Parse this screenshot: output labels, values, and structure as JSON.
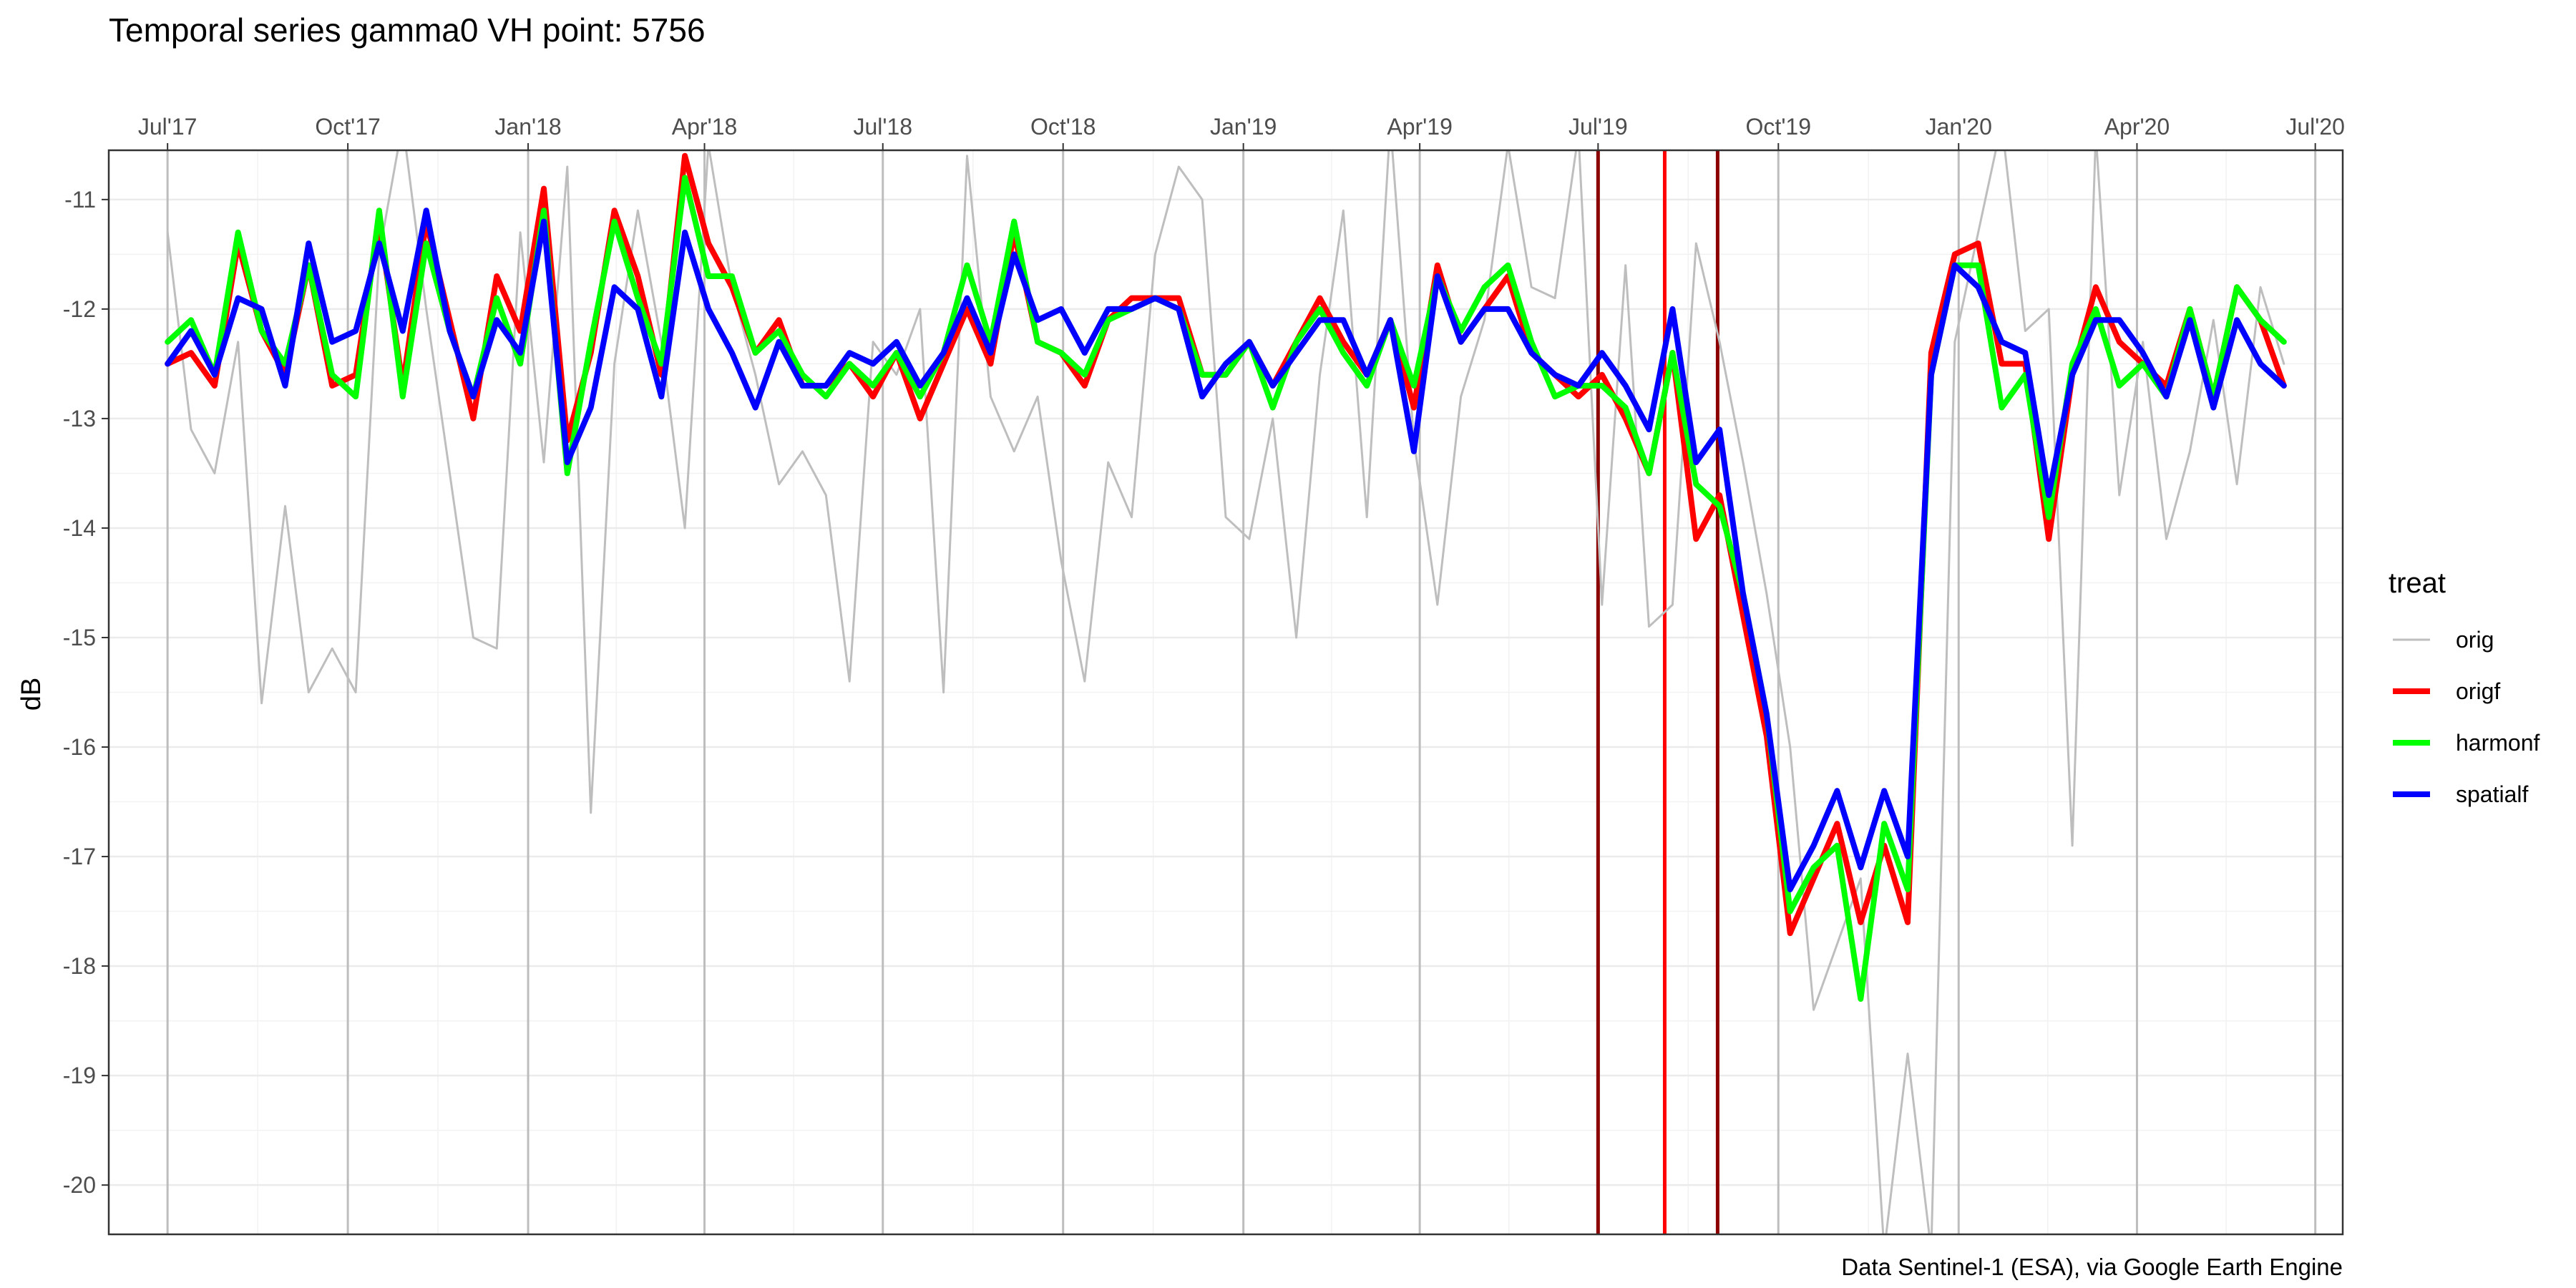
{
  "chart_data": {
    "type": "line",
    "title": "Temporal series gamma0 VH point: 5756",
    "xlabel": "",
    "ylabel": "dB",
    "caption": "Data Sentinel-1 (ESA), via Google Earth Engine",
    "x_axis_position": "top",
    "x_ticks": [
      {
        "date": "2017-07-01",
        "label": "Jul'17"
      },
      {
        "date": "2017-10-01",
        "label": "Oct'17"
      },
      {
        "date": "2018-01-01",
        "label": "Jan'18"
      },
      {
        "date": "2018-04-01",
        "label": "Apr'18"
      },
      {
        "date": "2018-07-01",
        "label": "Jul'18"
      },
      {
        "date": "2018-10-01",
        "label": "Oct'18"
      },
      {
        "date": "2019-01-01",
        "label": "Jan'19"
      },
      {
        "date": "2019-04-01",
        "label": "Apr'19"
      },
      {
        "date": "2019-07-01",
        "label": "Jul'19"
      },
      {
        "date": "2019-10-01",
        "label": "Oct'19"
      },
      {
        "date": "2020-01-01",
        "label": "Jan'20"
      },
      {
        "date": "2020-04-01",
        "label": "Apr'20"
      },
      {
        "date": "2020-07-01",
        "label": "Jul'20"
      }
    ],
    "xlim": [
      "2017-06-01",
      "2020-07-15"
    ],
    "ylim": [
      -20.45,
      -10.55
    ],
    "y_ticks": [
      -20,
      -19,
      -18,
      -17,
      -16,
      -15,
      -14,
      -13,
      -12,
      -11
    ],
    "grid": true,
    "legend": {
      "title": "treat",
      "position": "right"
    },
    "x": [
      "2017-07-01",
      "2017-07-13",
      "2017-07-25",
      "2017-08-06",
      "2017-08-18",
      "2017-08-30",
      "2017-09-11",
      "2017-09-23",
      "2017-10-05",
      "2017-10-17",
      "2017-10-29",
      "2017-11-10",
      "2017-11-22",
      "2017-12-04",
      "2017-12-16",
      "2017-12-28",
      "2018-01-09",
      "2018-01-21",
      "2018-02-02",
      "2018-02-14",
      "2018-02-26",
      "2018-03-10",
      "2018-03-22",
      "2018-04-03",
      "2018-04-15",
      "2018-04-27",
      "2018-05-09",
      "2018-05-21",
      "2018-06-02",
      "2018-06-14",
      "2018-06-26",
      "2018-07-08",
      "2018-07-20",
      "2018-08-01",
      "2018-08-13",
      "2018-08-25",
      "2018-09-06",
      "2018-09-18",
      "2018-09-30",
      "2018-10-12",
      "2018-10-24",
      "2018-11-05",
      "2018-11-17",
      "2018-11-29",
      "2018-12-11",
      "2018-12-23",
      "2019-01-04",
      "2019-01-16",
      "2019-01-28",
      "2019-02-09",
      "2019-02-21",
      "2019-03-05",
      "2019-03-17",
      "2019-03-29",
      "2019-04-10",
      "2019-04-22",
      "2019-05-04",
      "2019-05-16",
      "2019-05-28",
      "2019-06-09",
      "2019-06-21",
      "2019-07-03",
      "2019-07-15",
      "2019-07-27",
      "2019-08-08",
      "2019-08-20",
      "2019-09-01",
      "2019-09-13",
      "2019-09-25",
      "2019-10-07",
      "2019-10-19",
      "2019-10-31",
      "2019-11-12",
      "2019-11-24",
      "2019-12-06",
      "2019-12-18",
      "2019-12-30",
      "2020-01-11",
      "2020-01-23",
      "2020-02-04",
      "2020-02-16",
      "2020-02-28",
      "2020-03-11",
      "2020-03-23",
      "2020-04-04",
      "2020-04-16",
      "2020-04-28",
      "2020-05-10",
      "2020-05-22",
      "2020-06-03",
      "2020-06-15"
    ],
    "series": [
      {
        "name": "orig",
        "color": "#bebebe",
        "width": "thin",
        "values": [
          -11.3,
          -13.1,
          -13.5,
          -12.3,
          -15.6,
          -13.8,
          -15.5,
          -15.1,
          -15.5,
          -11.5,
          -10.3,
          -12.0,
          -13.5,
          -15.0,
          -15.1,
          -11.3,
          -13.4,
          -10.7,
          -16.6,
          -12.5,
          -11.1,
          -12.3,
          -14.0,
          -10.5,
          -11.8,
          -12.6,
          -13.6,
          -13.3,
          -13.7,
          -15.4,
          -12.3,
          -12.6,
          -12.0,
          -15.5,
          -10.6,
          -12.8,
          -13.3,
          -12.8,
          -14.3,
          -15.4,
          -13.4,
          -13.9,
          -11.5,
          -10.7,
          -11.0,
          -13.9,
          -14.1,
          -13.0,
          -15.0,
          -12.6,
          -11.1,
          -13.9,
          -10.3,
          -13.2,
          -14.7,
          -12.8,
          -12.1,
          -10.5,
          -11.8,
          -11.9,
          -10.4,
          -14.7,
          -11.6,
          -14.9,
          -14.7,
          -11.4,
          -12.3,
          -13.4,
          -14.6,
          -16.0,
          -18.4,
          -17.8,
          -17.2,
          -20.6,
          -18.8,
          -20.6,
          -12.3,
          -11.3,
          -10.3,
          -12.2,
          -12.0,
          -16.9,
          -10.4,
          -13.7,
          -12.3,
          -14.1,
          -13.3,
          -12.1,
          -13.6,
          -11.8,
          -12.5
        ]
      },
      {
        "name": "origf",
        "color": "#ff0000",
        "width": "thick",
        "values": [
          -12.5,
          -12.4,
          -12.7,
          -11.4,
          -12.2,
          -12.6,
          -11.6,
          -12.7,
          -12.6,
          -11.2,
          -12.7,
          -11.2,
          -12.1,
          -13.0,
          -11.7,
          -12.2,
          -10.9,
          -13.2,
          -12.4,
          -11.1,
          -11.7,
          -12.6,
          -10.6,
          -11.4,
          -11.8,
          -12.4,
          -12.1,
          -12.7,
          -12.7,
          -12.5,
          -12.8,
          -12.4,
          -13.0,
          -12.5,
          -12.0,
          -12.5,
          -11.3,
          -12.3,
          -12.4,
          -12.7,
          -12.1,
          -11.9,
          -11.9,
          -11.9,
          -12.6,
          -12.6,
          -12.3,
          -12.7,
          -12.3,
          -11.9,
          -12.3,
          -12.6,
          -12.1,
          -12.9,
          -11.6,
          -12.3,
          -12.0,
          -11.7,
          -12.4,
          -12.6,
          -12.8,
          -12.6,
          -13.0,
          -13.5,
          -12.4,
          -14.1,
          -13.7,
          -14.8,
          -15.9,
          -17.7,
          -17.2,
          -16.7,
          -17.6,
          -16.9,
          -17.6,
          -12.4,
          -11.5,
          -11.4,
          -12.5,
          -12.5,
          -14.1,
          -12.6,
          -11.8,
          -12.3,
          -12.5,
          -12.7,
          -12.0,
          -12.8,
          -11.8,
          -12.1,
          -12.7
        ]
      },
      {
        "name": "harmonf",
        "color": "#00ff00",
        "width": "thick",
        "values": [
          -12.3,
          -12.1,
          -12.6,
          -11.3,
          -12.2,
          -12.5,
          -11.6,
          -12.6,
          -12.8,
          -11.1,
          -12.8,
          -11.4,
          -12.2,
          -12.8,
          -11.9,
          -12.5,
          -11.1,
          -13.5,
          -12.3,
          -11.2,
          -11.9,
          -12.5,
          -10.8,
          -11.7,
          -11.7,
          -12.4,
          -12.2,
          -12.6,
          -12.8,
          -12.5,
          -12.7,
          -12.4,
          -12.8,
          -12.4,
          -11.6,
          -12.3,
          -11.2,
          -12.3,
          -12.4,
          -12.6,
          -12.1,
          -12.0,
          -11.9,
          -12.0,
          -12.6,
          -12.6,
          -12.3,
          -12.9,
          -12.3,
          -12.0,
          -12.4,
          -12.7,
          -12.1,
          -12.7,
          -11.7,
          -12.2,
          -11.8,
          -11.6,
          -12.3,
          -12.8,
          -12.7,
          -12.7,
          -12.9,
          -13.5,
          -12.4,
          -13.6,
          -13.8,
          -14.6,
          -15.7,
          -17.5,
          -17.1,
          -16.9,
          -18.3,
          -16.7,
          -17.3,
          -12.6,
          -11.6,
          -11.6,
          -12.9,
          -12.6,
          -13.9,
          -12.5,
          -12.0,
          -12.7,
          -12.5,
          -12.8,
          -12.0,
          -12.8,
          -11.8,
          -12.1,
          -12.3
        ]
      },
      {
        "name": "spatialf",
        "color": "#0000ff",
        "width": "thick",
        "values": [
          -12.5,
          -12.2,
          -12.6,
          -11.9,
          -12.0,
          -12.7,
          -11.4,
          -12.3,
          -12.2,
          -11.4,
          -12.2,
          -11.1,
          -12.2,
          -12.8,
          -12.1,
          -12.4,
          -11.2,
          -13.4,
          -12.9,
          -11.8,
          -12.0,
          -12.8,
          -11.3,
          -12.0,
          -12.4,
          -12.9,
          -12.3,
          -12.7,
          -12.7,
          -12.4,
          -12.5,
          -12.3,
          -12.7,
          -12.4,
          -11.9,
          -12.4,
          -11.5,
          -12.1,
          -12.0,
          -12.4,
          -12.0,
          -12.0,
          -11.9,
          -12.0,
          -12.8,
          -12.5,
          -12.3,
          -12.7,
          -12.4,
          -12.1,
          -12.1,
          -12.6,
          -12.1,
          -13.3,
          -11.7,
          -12.3,
          -12.0,
          -12.0,
          -12.4,
          -12.6,
          -12.7,
          -12.4,
          -12.7,
          -13.1,
          -12.0,
          -13.4,
          -13.1,
          -14.6,
          -15.7,
          -17.3,
          -16.9,
          -16.4,
          -17.1,
          -16.4,
          -17.0,
          -12.6,
          -11.6,
          -11.8,
          -12.3,
          -12.4,
          -13.7,
          -12.6,
          -12.1,
          -12.1,
          -12.4,
          -12.8,
          -12.1,
          -12.9,
          -12.1,
          -12.5,
          -12.7
        ]
      }
    ],
    "vlines": [
      {
        "date": "2019-07-01",
        "color": "#8b0000"
      },
      {
        "date": "2019-08-04",
        "color": "#ff0000"
      },
      {
        "date": "2019-08-31",
        "color": "#8b0000"
      }
    ]
  }
}
